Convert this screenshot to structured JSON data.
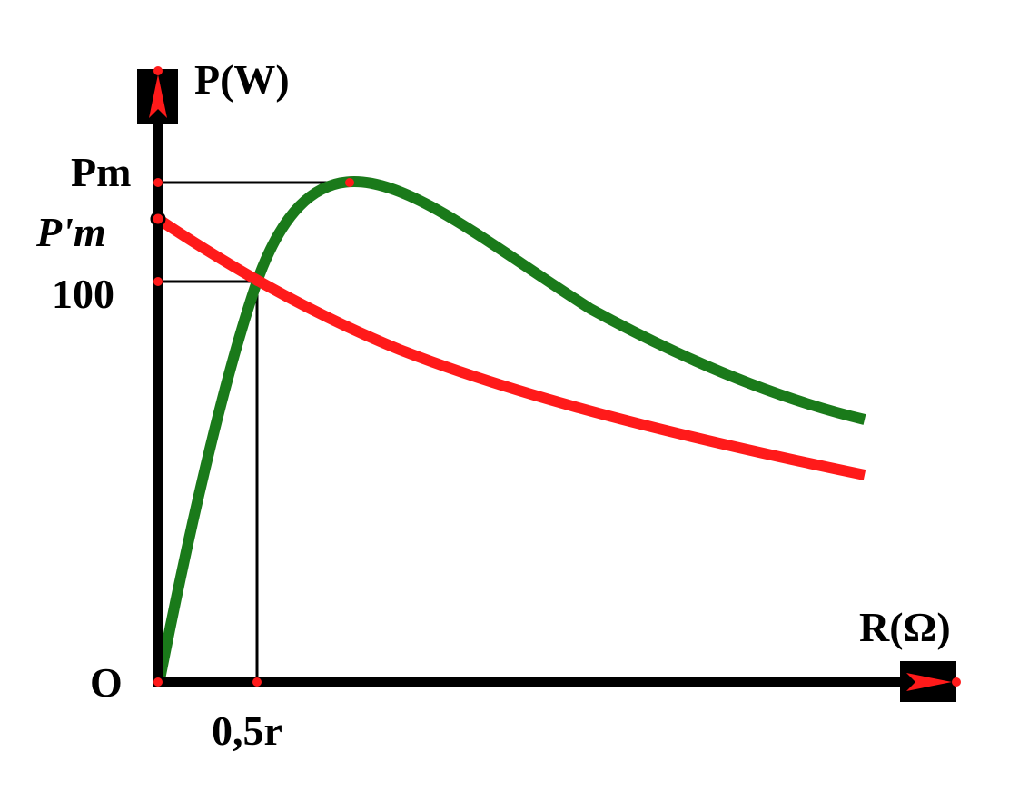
{
  "chart_data": {
    "type": "line",
    "xlabel": "R(Ω)",
    "ylabel": "P(W)",
    "origin_label": "O",
    "y_tick_labels": [
      "Pm",
      "P'm",
      "100"
    ],
    "x_tick_labels": [
      "0,5r"
    ],
    "series": [
      {
        "color": "#1a7a1a"
      },
      {
        "color": "#ff1a1a"
      }
    ]
  },
  "colors": {
    "axis": "#000000",
    "arrow_fill": "#ff1a1a",
    "marker": "#ff1a1a"
  }
}
